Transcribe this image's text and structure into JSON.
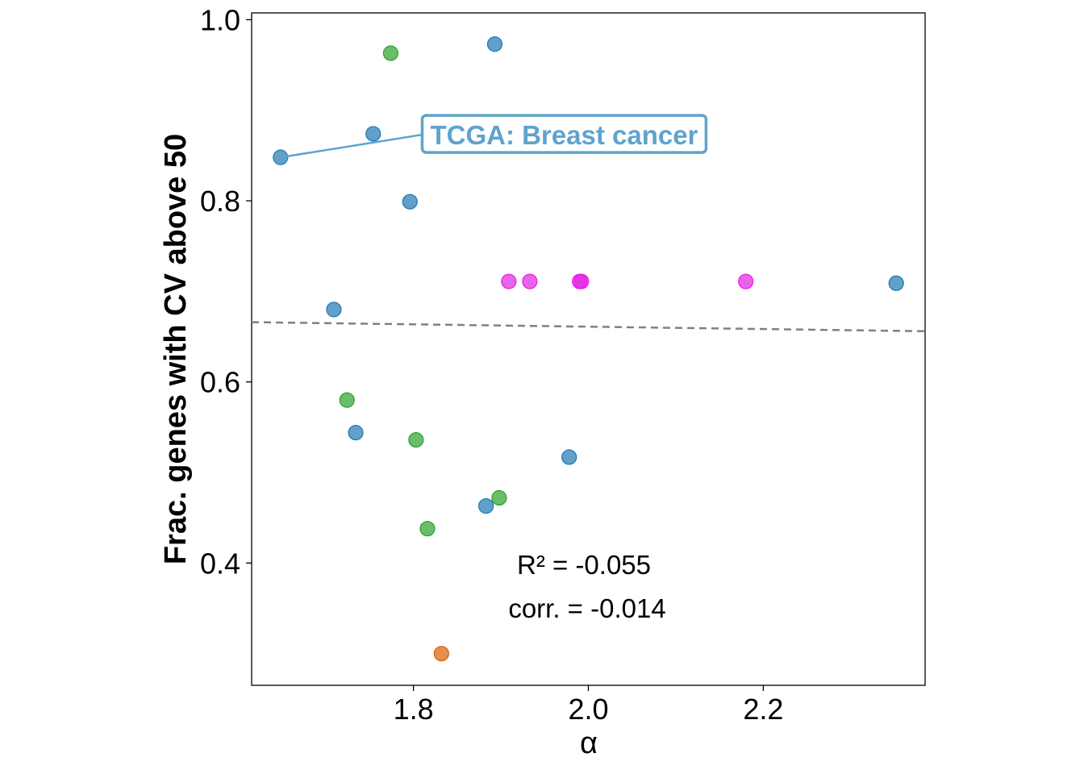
{
  "chart_data": {
    "type": "scatter",
    "xlabel": "α",
    "ylabel": "Frac. genes with CV above 50",
    "xlim": [
      1.615,
      2.385
    ],
    "ylim": [
      0.265,
      1.0075
    ],
    "xticks": [
      1.8,
      2.0,
      2.2
    ],
    "yticks": [
      0.4,
      0.6,
      0.8,
      1.0
    ],
    "x_tick_labels": [
      "1.8",
      "2.0",
      "2.2"
    ],
    "y_tick_labels": [
      "0.4",
      "0.6",
      "0.8",
      "1.0"
    ],
    "grid": false,
    "colors": {
      "blue": "#1f77b4",
      "green": "#2ca02c",
      "orange": "#d95f02",
      "magenta": "#e31fe3",
      "annotation": "#5fa3cc",
      "trendline": "#808080"
    },
    "points": [
      {
        "x": 1.648,
        "y": 0.848,
        "color": "blue"
      },
      {
        "x": 1.754,
        "y": 0.874,
        "color": "blue"
      },
      {
        "x": 1.893,
        "y": 0.973,
        "color": "blue"
      },
      {
        "x": 1.796,
        "y": 0.799,
        "color": "blue"
      },
      {
        "x": 1.709,
        "y": 0.68,
        "color": "blue"
      },
      {
        "x": 1.734,
        "y": 0.544,
        "color": "blue"
      },
      {
        "x": 1.978,
        "y": 0.517,
        "color": "blue"
      },
      {
        "x": 1.883,
        "y": 0.463,
        "color": "blue"
      },
      {
        "x": 2.352,
        "y": 0.709,
        "color": "blue"
      },
      {
        "x": 1.774,
        "y": 0.963,
        "color": "green"
      },
      {
        "x": 1.724,
        "y": 0.58,
        "color": "green"
      },
      {
        "x": 1.803,
        "y": 0.536,
        "color": "green"
      },
      {
        "x": 1.898,
        "y": 0.472,
        "color": "green"
      },
      {
        "x": 1.816,
        "y": 0.438,
        "color": "green"
      },
      {
        "x": 1.832,
        "y": 0.3,
        "color": "orange"
      },
      {
        "x": 1.909,
        "y": 0.711,
        "color": "magenta"
      },
      {
        "x": 1.933,
        "y": 0.711,
        "color": "magenta"
      },
      {
        "x": 1.99,
        "y": 0.711,
        "color": "magenta"
      },
      {
        "x": 1.992,
        "y": 0.711,
        "color": "magenta"
      },
      {
        "x": 2.18,
        "y": 0.711,
        "color": "magenta"
      }
    ],
    "trendline": {
      "x": [
        1.615,
        2.385
      ],
      "y": [
        0.666,
        0.656
      ]
    },
    "annotation": {
      "text": "TCGA: Breast cancer",
      "point": {
        "x": 1.648,
        "y": 0.848
      },
      "label_anchor": {
        "x": 1.81,
        "y": 0.873
      }
    },
    "stats": {
      "r2": "R² = -0.055",
      "corr": "corr. = -0.014"
    }
  }
}
